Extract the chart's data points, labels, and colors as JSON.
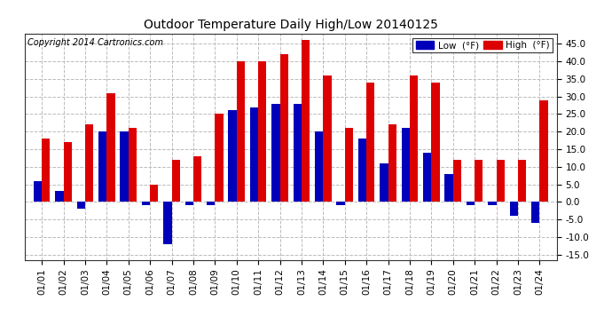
{
  "dates": [
    "01/01",
    "01/02",
    "01/03",
    "01/04",
    "01/05",
    "01/06",
    "01/07",
    "01/08",
    "01/09",
    "01/10",
    "01/11",
    "01/12",
    "01/13",
    "01/14",
    "01/15",
    "01/16",
    "01/17",
    "01/18",
    "01/19",
    "01/20",
    "01/21",
    "01/22",
    "01/23",
    "01/24"
  ],
  "highs": [
    18,
    17,
    22,
    31,
    21,
    5,
    12,
    13,
    25,
    40,
    40,
    42,
    46,
    36,
    21,
    34,
    22,
    36,
    34,
    12,
    12,
    12,
    12,
    29
  ],
  "lows": [
    6,
    3,
    -2,
    20,
    20,
    -1,
    -12,
    -1,
    -1,
    26,
    27,
    28,
    28,
    20,
    -1,
    18,
    11,
    21,
    14,
    8,
    -1,
    -1,
    -4,
    -6
  ],
  "title": "Outdoor Temperature Daily High/Low 20140125",
  "copyright": "Copyright 2014 Cartronics.com",
  "legend_low_label": "Low  (°F)",
  "legend_high_label": "High  (°F)",
  "low_color": "#0000bb",
  "high_color": "#dd0000",
  "background_color": "#ffffff",
  "grid_color": "#bbbbbb",
  "ylim": [
    -16.5,
    48
  ],
  "yticks": [
    -15.0,
    -10.0,
    -5.0,
    0.0,
    5.0,
    10.0,
    15.0,
    20.0,
    25.0,
    30.0,
    35.0,
    40.0,
    45.0
  ],
  "bar_width": 0.38,
  "figwidth": 6.9,
  "figheight": 3.75,
  "dpi": 100
}
